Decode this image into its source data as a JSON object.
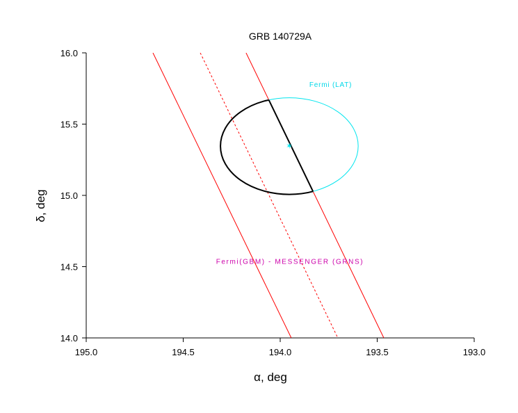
{
  "chart_data": {
    "type": "line",
    "title": "GRB 140729A",
    "xlabel": "α, deg",
    "ylabel": "δ, deg",
    "xlim": [
      195.0,
      193.0
    ],
    "ylim": [
      14.0,
      16.0
    ],
    "x_ticks": [
      "195.0",
      "194.5",
      "194.0",
      "193.5",
      "193.0"
    ],
    "x_tick_values": [
      195.0,
      194.5,
      194.0,
      193.5,
      193.0
    ],
    "y_ticks": [
      "14.0",
      "14.5",
      "15.0",
      "15.5",
      "16.0"
    ],
    "y_tick_values": [
      14.0,
      14.5,
      15.0,
      15.5,
      16.0
    ],
    "grid": false,
    "series": [
      {
        "name": "IPN annulus left edge",
        "style": "solid",
        "color": "#ff0000",
        "points": [
          [
            194.656,
            16.0
          ],
          [
            193.943,
            14.0
          ]
        ]
      },
      {
        "name": "IPN annulus center",
        "style": "dashed",
        "color": "#ff0000",
        "points": [
          [
            194.412,
            16.0
          ],
          [
            193.703,
            14.0
          ]
        ]
      },
      {
        "name": "IPN annulus right edge",
        "style": "solid",
        "color": "#ff0000",
        "points": [
          [
            194.176,
            16.0
          ],
          [
            193.466,
            14.0
          ]
        ]
      }
    ],
    "ellipse": {
      "name": "Fermi (LAT)",
      "center": [
        193.953,
        15.346
      ],
      "semi_axis_alpha": 0.355,
      "semi_axis_delta": 0.339,
      "color": "#00e5ee",
      "intersection_color": "#000000"
    },
    "annotations": [
      {
        "text": "Fermi (LAT)",
        "at": [
          193.85,
          15.76
        ],
        "color": "#00d8e8"
      },
      {
        "text": "Fermi(GBM) - MESSENGER (GRNS)",
        "at": [
          193.95,
          14.52
        ],
        "color": "#cc00aa"
      }
    ]
  }
}
